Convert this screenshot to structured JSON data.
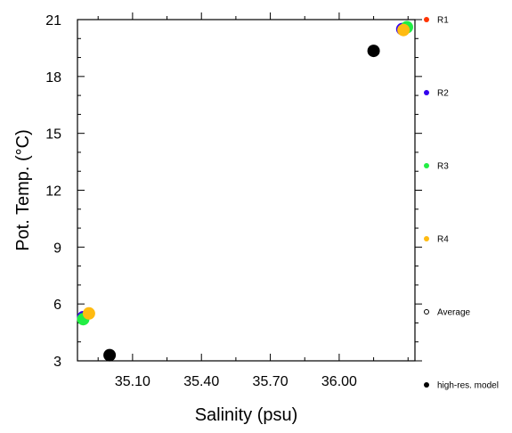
{
  "chart_data": {
    "type": "scatter",
    "xlabel": "Salinity (psu)",
    "ylabel": "Pot. Temp. (°C)",
    "xlim": [
      34.86,
      36.33
    ],
    "ylim": [
      3,
      21
    ],
    "x_ticks": [
      35.1,
      35.4,
      35.7,
      36.0
    ],
    "x_tick_labels": [
      "35.10",
      "35.40",
      "35.70",
      "36.00"
    ],
    "y_ticks": [
      3,
      6,
      9,
      12,
      15,
      18,
      21
    ],
    "y_tick_labels": [
      "3",
      "6",
      "9",
      "12",
      "15",
      "18",
      "21"
    ],
    "grid": false,
    "legend_position": "right",
    "series": [
      {
        "name": "R1",
        "color": "#ff3300",
        "points": []
      },
      {
        "name": "R2",
        "color": "#3300ee",
        "points": [
          [
            36.275,
            20.5
          ],
          [
            34.885,
            5.3
          ]
        ]
      },
      {
        "name": "R3",
        "color": "#22ee44",
        "points": [
          [
            36.295,
            20.6
          ],
          [
            34.885,
            5.2
          ]
        ]
      },
      {
        "name": "R4",
        "color": "#ffbb11",
        "points": [
          [
            36.28,
            20.45
          ],
          [
            34.91,
            5.5
          ]
        ]
      },
      {
        "name": "Average",
        "color": "#000000",
        "hollow": true,
        "points": []
      },
      {
        "name": "high-res. model",
        "color": "#000000",
        "points": [
          [
            36.15,
            19.35
          ],
          [
            35.0,
            3.3
          ]
        ]
      }
    ]
  }
}
